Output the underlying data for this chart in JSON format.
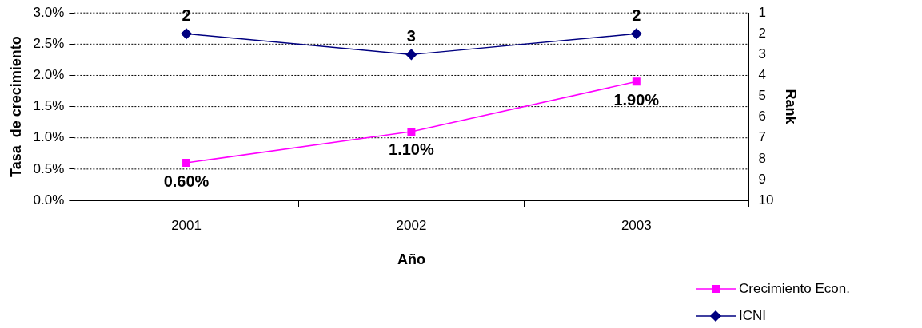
{
  "chart_data": {
    "type": "line",
    "xlabel": "Año",
    "ylabel": "Tasa  de crecimiento",
    "y2label": "Rank",
    "categories": [
      "2001",
      "2002",
      "2003"
    ],
    "series": [
      {
        "name": "Crecimiento Econ.",
        "color": "#ff00ff",
        "values": [
          0.6,
          1.1,
          1.9
        ],
        "marker": "square",
        "value_labels": [
          "0.60%",
          "1.10%",
          "1.90%"
        ]
      },
      {
        "name": "ICNI",
        "color": "#000080",
        "values": [
          2,
          3,
          2
        ],
        "axis": "y2",
        "marker": "diamond",
        "value_labels": [
          "2",
          "3",
          "2"
        ]
      }
    ],
    "ylim": [
      0,
      3
    ],
    "yticks": [
      {
        "value": 0,
        "label": "0.0%"
      },
      {
        "value": 0.5,
        "label": "0.5%"
      },
      {
        "value": 1,
        "label": "1.0%"
      },
      {
        "value": 1.5,
        "label": "1.5%"
      },
      {
        "value": 2,
        "label": "2.0%"
      },
      {
        "value": 2.5,
        "label": "2.5%"
      },
      {
        "value": 3,
        "label": "3.0%"
      }
    ],
    "y2lim": [
      10,
      1
    ],
    "y2ticks": [
      1,
      2,
      3,
      4,
      5,
      6,
      7,
      8,
      9,
      10
    ],
    "grid": "y",
    "legend": "bottom right",
    "line_style": "solid"
  }
}
